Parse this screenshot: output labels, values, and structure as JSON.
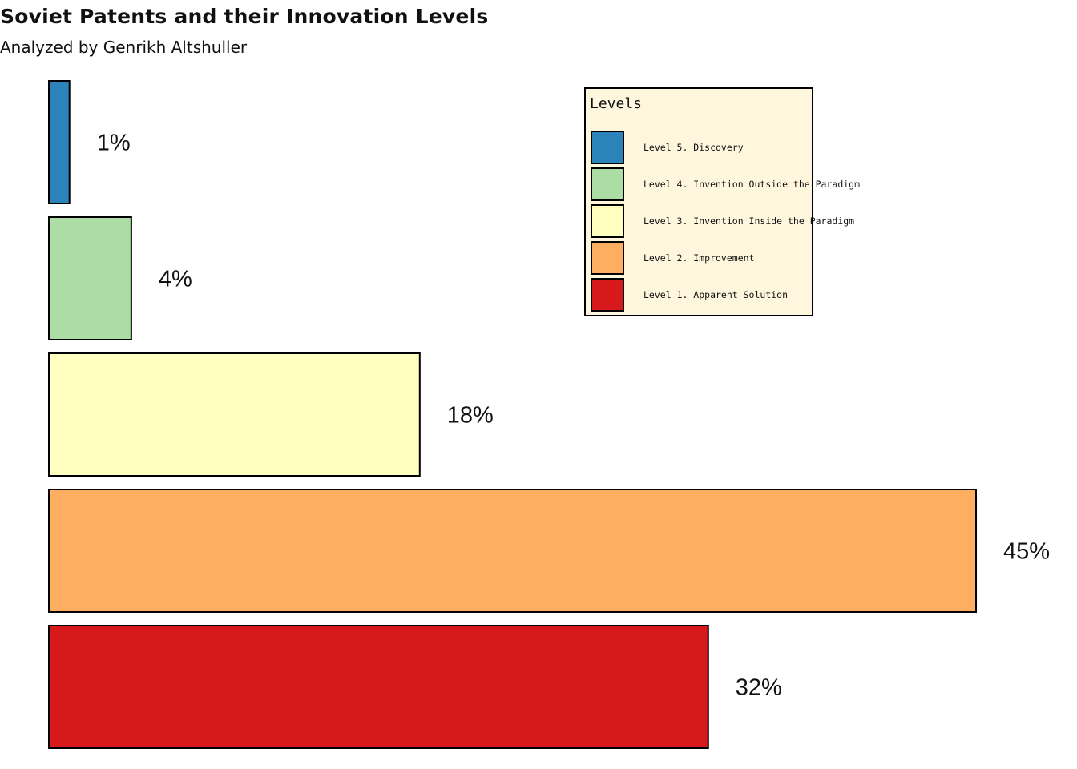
{
  "chart_data": {
    "type": "bar",
    "orientation": "horizontal",
    "title": "Soviet Patents and their Innovation Levels",
    "subtitle": "Analyzed by Genrikh Altshuller",
    "categories": [
      "Level 5. Discovery",
      "Level 4. Invention Outside the Paradigm",
      "Level 3. Invention Inside the Paradigm",
      "Level 2. Improvement",
      "Level 1. Apparent Solution"
    ],
    "values": [
      1,
      4,
      18,
      45,
      32
    ],
    "value_labels": [
      "1%",
      "4%",
      "18%",
      "45%",
      "32%"
    ],
    "colors": [
      "#2b83ba",
      "#abdda4",
      "#ffffbf",
      "#fdae61",
      "#d7191c"
    ],
    "xlim": [
      0,
      45
    ],
    "axes_visible": false,
    "grid": false,
    "legend": {
      "title": "Levels",
      "placement": "top-right",
      "items": [
        {
          "label": "Level 5. Discovery",
          "color": "#2b83ba"
        },
        {
          "label": "Level 4. Invention Outside the Paradigm",
          "color": "#abdda4"
        },
        {
          "label": "Level 3. Invention Inside the Paradigm",
          "color": "#ffffbf"
        },
        {
          "label": "Level 2. Improvement",
          "color": "#fdae61"
        },
        {
          "label": "Level 1. Apparent Solution",
          "color": "#d7191c"
        }
      ]
    }
  }
}
